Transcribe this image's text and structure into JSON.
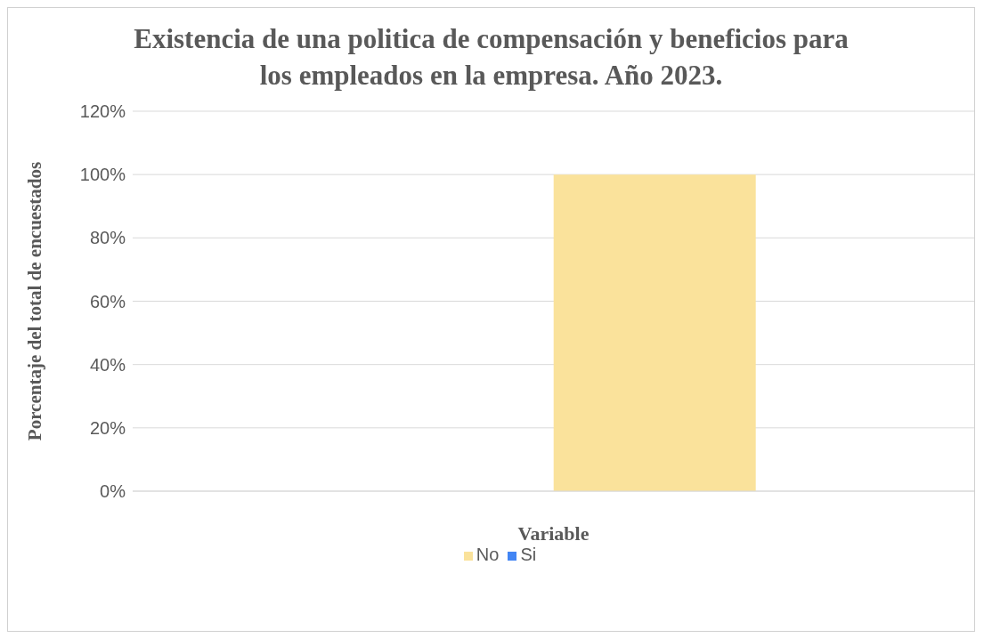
{
  "chart_data": {
    "type": "bar",
    "title": "Existencia de una politica de compensación y beneficios para los empleados en la empresa. Año 2023.",
    "xlabel": "Variable",
    "ylabel": "Porcentaje del total de encuestados",
    "categories": [
      null
    ],
    "series": [
      {
        "name": "Si",
        "color": "#4285f4",
        "values": [
          0
        ]
      },
      {
        "name": "No",
        "color": "#fae29b",
        "values": [
          100
        ]
      }
    ],
    "ylim": [
      0,
      120
    ],
    "yticks": [
      {
        "value": 0,
        "label": "0%"
      },
      {
        "value": 20,
        "label": "20%"
      },
      {
        "value": 40,
        "label": "40%"
      },
      {
        "value": 60,
        "label": "60%"
      },
      {
        "value": 80,
        "label": "80%"
      },
      {
        "value": 100,
        "label": "100%"
      },
      {
        "value": 120,
        "label": "120%"
      }
    ],
    "grid": "y",
    "legend": "bottom"
  }
}
